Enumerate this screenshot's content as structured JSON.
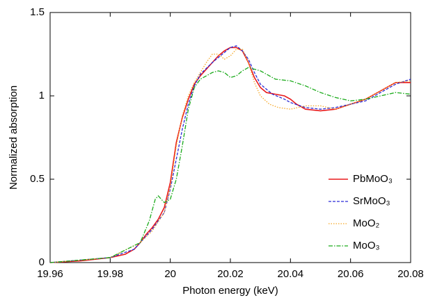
{
  "chart_data": {
    "type": "line",
    "xlabel": "Photon energy (keV)",
    "ylabel": "Normalized absorption",
    "xlim": [
      19.96,
      20.08
    ],
    "xticks": [
      19.96,
      19.98,
      20,
      20.02,
      20.04,
      20.06,
      20.08
    ],
    "ylim": [
      0,
      1.5
    ],
    "yticks": [
      0,
      0.5,
      1,
      1.5
    ],
    "legend": "lower right",
    "series": [
      {
        "name": "PbMoO₃",
        "color": "#e8191b",
        "dash": "solid",
        "x": [
          19.96,
          19.97,
          19.98,
          19.985,
          19.988,
          19.99,
          19.992,
          19.994,
          19.996,
          19.998,
          20.0,
          20.002,
          20.004,
          20.006,
          20.008,
          20.01,
          20.012,
          20.014,
          20.016,
          20.018,
          20.02,
          20.022,
          20.024,
          20.026,
          20.028,
          20.03,
          20.032,
          20.035,
          20.038,
          20.04,
          20.042,
          20.045,
          20.05,
          20.055,
          20.06,
          20.065,
          20.07,
          20.075,
          20.08
        ],
        "values": [
          0.0,
          0.01,
          0.03,
          0.05,
          0.08,
          0.12,
          0.17,
          0.21,
          0.26,
          0.33,
          0.48,
          0.72,
          0.87,
          0.98,
          1.07,
          1.12,
          1.16,
          1.2,
          1.24,
          1.27,
          1.29,
          1.29,
          1.27,
          1.2,
          1.11,
          1.05,
          1.02,
          1.01,
          1.0,
          0.98,
          0.95,
          0.92,
          0.91,
          0.92,
          0.95,
          0.98,
          1.03,
          1.08,
          1.08
        ]
      },
      {
        "name": "SrMoO₃",
        "color": "#2b2bd6",
        "dash": "dashed",
        "x": [
          19.96,
          19.98,
          19.988,
          19.99,
          19.994,
          19.998,
          20.0,
          20.002,
          20.004,
          20.006,
          20.008,
          20.01,
          20.014,
          20.018,
          20.02,
          20.022,
          20.024,
          20.026,
          20.028,
          20.03,
          20.034,
          20.038,
          20.04,
          20.045,
          20.05,
          20.055,
          20.06,
          20.065,
          20.07,
          20.075,
          20.08
        ],
        "values": [
          0.0,
          0.03,
          0.08,
          0.12,
          0.2,
          0.3,
          0.44,
          0.62,
          0.8,
          0.95,
          1.06,
          1.13,
          1.2,
          1.26,
          1.29,
          1.3,
          1.27,
          1.22,
          1.14,
          1.07,
          1.01,
          0.98,
          0.96,
          0.93,
          0.92,
          0.93,
          0.95,
          0.97,
          1.02,
          1.07,
          1.1
        ]
      },
      {
        "name": "MoO₂",
        "color": "#f5a623",
        "dash": "dotted",
        "x": [
          19.96,
          19.98,
          19.99,
          19.994,
          19.998,
          20.0,
          20.002,
          20.004,
          20.006,
          20.008,
          20.01,
          20.012,
          20.014,
          20.016,
          20.018,
          20.02,
          20.022,
          20.024,
          20.026,
          20.028,
          20.03,
          20.033,
          20.036,
          20.04,
          20.045,
          20.05,
          20.055,
          20.06,
          20.065,
          20.07,
          20.075,
          20.08
        ],
        "values": [
          0.0,
          0.03,
          0.12,
          0.19,
          0.3,
          0.45,
          0.7,
          0.88,
          1.0,
          1.08,
          1.14,
          1.2,
          1.25,
          1.25,
          1.22,
          1.24,
          1.28,
          1.28,
          1.2,
          1.08,
          1.0,
          0.95,
          0.93,
          0.92,
          0.94,
          0.94,
          0.92,
          0.95,
          0.98,
          1.03,
          1.08,
          1.09
        ]
      },
      {
        "name": "MoO₃",
        "color": "#1aaa1a",
        "dash": "dashdot",
        "x": [
          19.96,
          19.98,
          19.99,
          19.993,
          19.995,
          19.996,
          19.998,
          20.0,
          20.002,
          20.004,
          20.006,
          20.008,
          20.01,
          20.014,
          20.016,
          20.018,
          20.02,
          20.022,
          20.024,
          20.026,
          20.03,
          20.035,
          20.04,
          20.045,
          20.05,
          20.055,
          20.06,
          20.065,
          20.07,
          20.075,
          20.08
        ],
        "values": [
          0.0,
          0.03,
          0.12,
          0.25,
          0.38,
          0.4,
          0.36,
          0.38,
          0.5,
          0.7,
          0.92,
          1.05,
          1.1,
          1.14,
          1.15,
          1.14,
          1.11,
          1.12,
          1.15,
          1.17,
          1.15,
          1.1,
          1.09,
          1.06,
          1.02,
          0.99,
          0.97,
          0.98,
          1.0,
          1.02,
          1.01
        ]
      }
    ]
  }
}
